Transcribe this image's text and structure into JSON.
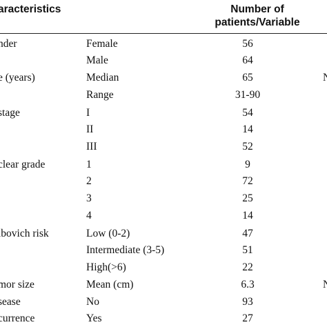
{
  "header": {
    "characteristics": "aracteristics",
    "number_line1": "Number of",
    "number_line2": "patients/Variable"
  },
  "rows": [
    {
      "characteristic": "nder",
      "subgroup": "Female",
      "value": "56",
      "edge": ""
    },
    {
      "characteristic": "",
      "subgroup": "Male",
      "value": "64",
      "edge": ""
    },
    {
      "characteristic": "e (years)",
      "subgroup": "Median",
      "value": "65",
      "edge": "N"
    },
    {
      "characteristic": "",
      "subgroup": "Range",
      "value": "31-90",
      "edge": ""
    },
    {
      "characteristic": " stage",
      "subgroup": "I",
      "value": "54",
      "edge": ""
    },
    {
      "characteristic": "",
      "subgroup": "II",
      "value": "14",
      "edge": ""
    },
    {
      "characteristic": "",
      "subgroup": "III",
      "value": "52",
      "edge": ""
    },
    {
      "characteristic": "clear grade",
      "subgroup": "1",
      "value": "9",
      "edge": ""
    },
    {
      "characteristic": "",
      "subgroup": "2",
      "value": "72",
      "edge": ""
    },
    {
      "characteristic": "",
      "subgroup": "3",
      "value": "25",
      "edge": ""
    },
    {
      "characteristic": "",
      "subgroup": "4",
      "value": "14",
      "edge": ""
    },
    {
      "characteristic": "ibovich risk",
      "subgroup": "Low (0-2)",
      "value": "47",
      "edge": ""
    },
    {
      "characteristic": "",
      "subgroup": "Intermediate (3-5)",
      "value": "51",
      "edge": ""
    },
    {
      "characteristic": "",
      "subgroup": "High(>6)",
      "value": "22",
      "edge": ""
    },
    {
      "characteristic": "mor size",
      "subgroup": "Mean (cm)",
      "value": "6.3",
      "edge": "N"
    },
    {
      "characteristic": "sease",
      "subgroup": "No",
      "value": "93",
      "edge": ""
    },
    {
      "characteristic": "currence",
      "subgroup": "Yes",
      "value": "27",
      "edge": ""
    }
  ]
}
